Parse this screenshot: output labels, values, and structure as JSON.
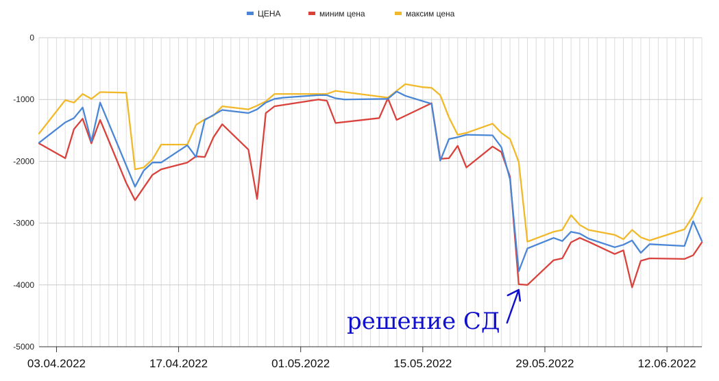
{
  "chart_data": {
    "type": "line",
    "title": "",
    "xlabel": "",
    "ylabel": "",
    "ylim": [
      -5000,
      0
    ],
    "yticks": [
      0,
      -1000,
      -2000,
      -3000,
      -4000,
      -5000
    ],
    "xlim": [
      0,
      76
    ],
    "xticks": [
      {
        "x": 2,
        "label": "03.04.2022"
      },
      {
        "x": 16,
        "label": "17.04.2022"
      },
      {
        "x": 30,
        "label": "01.05.2022"
      },
      {
        "x": 44,
        "label": "15.05.2022"
      },
      {
        "x": 58,
        "label": "29.05.2022"
      },
      {
        "x": 72,
        "label": "12.06.2022"
      }
    ],
    "grid": true,
    "legend_position": "top-center",
    "series": [
      {
        "name": "ЦЕНА",
        "color": "#4a86d6",
        "points": [
          [
            0,
            -1700
          ],
          [
            3,
            -1370
          ],
          [
            4,
            -1300
          ],
          [
            5,
            -1130
          ],
          [
            6,
            -1680
          ],
          [
            7,
            -1050
          ],
          [
            11,
            -2410
          ],
          [
            12,
            -2150
          ],
          [
            13,
            -2020
          ],
          [
            14,
            -2020
          ],
          [
            17,
            -1740
          ],
          [
            18,
            -1930
          ],
          [
            19,
            -1330
          ],
          [
            20,
            -1250
          ],
          [
            21,
            -1170
          ],
          [
            24,
            -1220
          ],
          [
            25,
            -1160
          ],
          [
            26,
            -1050
          ],
          [
            27,
            -990
          ],
          [
            28,
            -970
          ],
          [
            32,
            -930
          ],
          [
            33,
            -930
          ],
          [
            34,
            -980
          ],
          [
            35,
            -1000
          ],
          [
            40,
            -990
          ],
          [
            41,
            -870
          ],
          [
            42,
            -940
          ],
          [
            45,
            -1070
          ],
          [
            46,
            -1990
          ],
          [
            47,
            -1640
          ],
          [
            48,
            -1610
          ],
          [
            49,
            -1570
          ],
          [
            52,
            -1580
          ],
          [
            53,
            -1770
          ],
          [
            54,
            -2290
          ],
          [
            55,
            -3780
          ],
          [
            56,
            -3410
          ],
          [
            59,
            -3240
          ],
          [
            60,
            -3290
          ],
          [
            61,
            -3140
          ],
          [
            62,
            -3170
          ],
          [
            63,
            -3250
          ],
          [
            66,
            -3390
          ],
          [
            67,
            -3350
          ],
          [
            68,
            -3280
          ],
          [
            69,
            -3480
          ],
          [
            70,
            -3340
          ],
          [
            74,
            -3370
          ],
          [
            75,
            -2970
          ],
          [
            76,
            -3290
          ]
        ]
      },
      {
        "name": "миним цена",
        "color": "#d9413b",
        "points": [
          [
            0,
            -1710
          ],
          [
            3,
            -1950
          ],
          [
            4,
            -1480
          ],
          [
            5,
            -1310
          ],
          [
            6,
            -1710
          ],
          [
            7,
            -1330
          ],
          [
            10,
            -2350
          ],
          [
            11,
            -2630
          ],
          [
            13,
            -2220
          ],
          [
            14,
            -2130
          ],
          [
            17,
            -2020
          ],
          [
            18,
            -1920
          ],
          [
            19,
            -1930
          ],
          [
            20,
            -1610
          ],
          [
            21,
            -1400
          ],
          [
            24,
            -1810
          ],
          [
            25,
            -2610
          ],
          [
            26,
            -1220
          ],
          [
            27,
            -1110
          ],
          [
            32,
            -1000
          ],
          [
            33,
            -1020
          ],
          [
            34,
            -1380
          ],
          [
            39,
            -1300
          ],
          [
            40,
            -980
          ],
          [
            41,
            -1330
          ],
          [
            45,
            -1060
          ],
          [
            46,
            -1960
          ],
          [
            47,
            -1950
          ],
          [
            48,
            -1750
          ],
          [
            49,
            -2100
          ],
          [
            52,
            -1760
          ],
          [
            53,
            -1850
          ],
          [
            54,
            -2250
          ],
          [
            55,
            -3990
          ],
          [
            56,
            -4000
          ],
          [
            59,
            -3600
          ],
          [
            60,
            -3570
          ],
          [
            61,
            -3310
          ],
          [
            62,
            -3240
          ],
          [
            63,
            -3300
          ],
          [
            66,
            -3500
          ],
          [
            67,
            -3440
          ],
          [
            68,
            -4040
          ],
          [
            69,
            -3610
          ],
          [
            70,
            -3570
          ],
          [
            74,
            -3580
          ],
          [
            75,
            -3520
          ],
          [
            76,
            -3310
          ]
        ]
      },
      {
        "name": "максим цена",
        "color": "#f1b829",
        "points": [
          [
            0,
            -1550
          ],
          [
            3,
            -1010
          ],
          [
            4,
            -1050
          ],
          [
            5,
            -910
          ],
          [
            6,
            -990
          ],
          [
            7,
            -880
          ],
          [
            10,
            -890
          ],
          [
            11,
            -2130
          ],
          [
            12,
            -2100
          ],
          [
            13,
            -1970
          ],
          [
            14,
            -1730
          ],
          [
            17,
            -1730
          ],
          [
            18,
            -1410
          ],
          [
            19,
            -1320
          ],
          [
            20,
            -1260
          ],
          [
            21,
            -1110
          ],
          [
            24,
            -1160
          ],
          [
            25,
            -1100
          ],
          [
            26,
            -1030
          ],
          [
            27,
            -910
          ],
          [
            28,
            -910
          ],
          [
            33,
            -910
          ],
          [
            34,
            -860
          ],
          [
            40,
            -970
          ],
          [
            42,
            -750
          ],
          [
            44,
            -800
          ],
          [
            45,
            -810
          ],
          [
            46,
            -930
          ],
          [
            47,
            -1290
          ],
          [
            48,
            -1570
          ],
          [
            49,
            -1540
          ],
          [
            52,
            -1390
          ],
          [
            53,
            -1540
          ],
          [
            54,
            -1640
          ],
          [
            55,
            -2010
          ],
          [
            56,
            -3300
          ],
          [
            59,
            -3140
          ],
          [
            60,
            -3110
          ],
          [
            61,
            -2870
          ],
          [
            62,
            -3030
          ],
          [
            63,
            -3110
          ],
          [
            66,
            -3190
          ],
          [
            67,
            -3260
          ],
          [
            68,
            -3110
          ],
          [
            69,
            -3230
          ],
          [
            70,
            -3280
          ],
          [
            74,
            -3100
          ],
          [
            75,
            -2880
          ],
          [
            76,
            -2590
          ]
        ]
      }
    ],
    "annotations": [
      {
        "text": "решение СД",
        "color": "#1010cc",
        "arrow_target": [
          55,
          -4080
        ]
      }
    ]
  }
}
